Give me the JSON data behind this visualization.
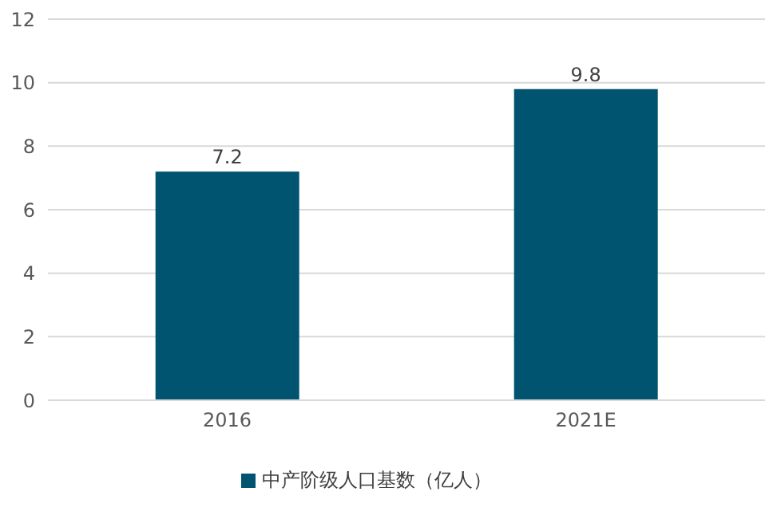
{
  "chart_data": {
    "type": "bar",
    "categories": [
      "2016",
      "2021E"
    ],
    "series": [
      {
        "name": "中产阶级人口基数（亿人）",
        "color": "#005470",
        "values": [
          7.2,
          9.8
        ]
      }
    ],
    "ylim": [
      0,
      12
    ],
    "yticks": [
      0,
      2,
      4,
      6,
      8,
      10,
      12
    ],
    "grid": "y",
    "legend": "bottom",
    "data_labels": true
  }
}
